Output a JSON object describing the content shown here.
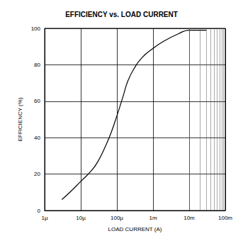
{
  "chart_data": {
    "type": "line",
    "title": "EFFICIENCY vs. LOAD CURRENT",
    "x_label": "LOAD CURRENT (A)",
    "y_label": "EFFICIENCY (%)",
    "log": "x",
    "grid": true,
    "color": "#000000",
    "line_style": "solid",
    "x": [
      3e-06,
      5e-06,
      1e-05,
      2e-05,
      3e-05,
      5e-05,
      7e-05,
      0.0001,
      0.00015,
      0.0002,
      0.0003,
      0.0005,
      0.001,
      0.002,
      0.005,
      0.01,
      0.02,
      0.03
    ],
    "values": [
      6,
      10,
      16,
      22,
      27,
      36,
      43,
      52,
      63,
      71,
      78,
      84,
      89,
      93,
      97,
      99,
      99,
      99
    ],
    "xlim": [
      1e-06,
      0.1
    ],
    "xticks": [
      {
        "value": 1e-06,
        "label": "1µ"
      },
      {
        "value": 1e-05,
        "label": "10µ"
      },
      {
        "value": 0.0001,
        "label": "100µ"
      },
      {
        "value": 0.001,
        "label": "1m"
      },
      {
        "value": 0.01,
        "label": "10m"
      },
      {
        "value": 0.1,
        "label": "100m"
      }
    ],
    "ylim": [
      0,
      100
    ],
    "yticks": [
      0,
      20,
      40,
      60,
      80,
      100
    ]
  }
}
